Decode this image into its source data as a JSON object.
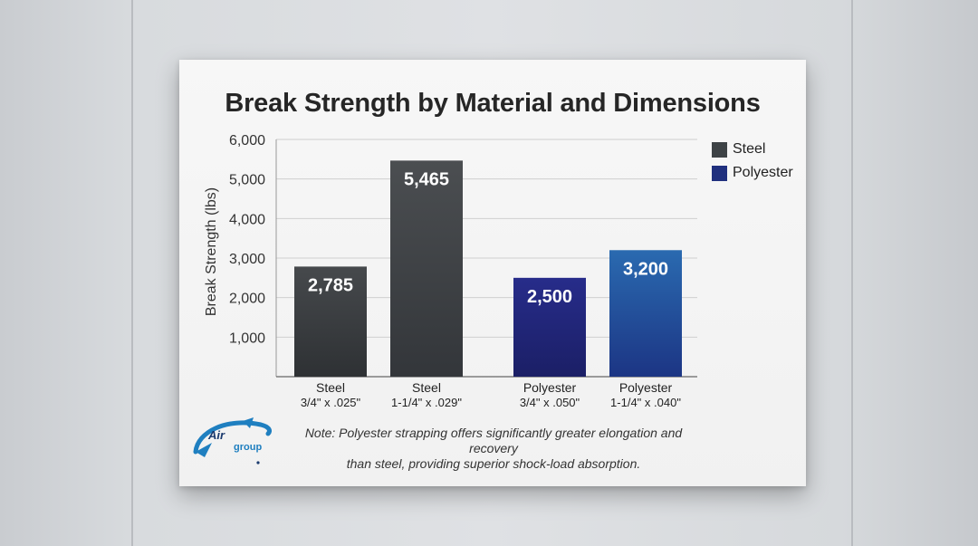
{
  "chart_data": {
    "type": "bar",
    "title": "Break Strength by Material and Dimensions",
    "ylabel": "Break Strength (lbs)",
    "xlabel": "",
    "ylim": [
      0,
      6000
    ],
    "yticks": [
      1000,
      2000,
      3000,
      4000,
      5000,
      6000
    ],
    "ytick_labels": [
      "1,000",
      "2,000",
      "3,000",
      "4,000",
      "5,000",
      "6,000"
    ],
    "grid": true,
    "legend_position": "top-right",
    "categories": [
      {
        "line1": "Steel",
        "line2": "3/4\" x .025\""
      },
      {
        "line1": "Steel",
        "line2": "1-1/4\" x .029\""
      },
      {
        "line1": "Polyester",
        "line2": "3/4\" x .050\""
      },
      {
        "line1": "Polyester",
        "line2": "1-1/4\" x .040\""
      }
    ],
    "values": [
      2785,
      5465,
      2500,
      3200
    ],
    "value_labels": [
      "2,785",
      "5,465",
      "2,500",
      "3,200"
    ],
    "series_of_bar": [
      "Steel",
      "Steel",
      "Polyester",
      "Polyester"
    ],
    "legend": [
      {
        "name": "Steel",
        "color": "#3e4346"
      },
      {
        "name": "Polyester",
        "color": "#20307e"
      }
    ],
    "bar_colors": [
      {
        "top": "#46494c",
        "bottom": "#2e3134"
      },
      {
        "top": "#4b4e51",
        "bottom": "#33363a"
      },
      {
        "top": "#272c8a",
        "bottom": "#1b1f66"
      },
      {
        "top": "#2a6ab0",
        "bottom": "#1c3584"
      }
    ]
  },
  "note": {
    "line1": "Note: Polyester strapping offers significantly greater elongation and recovery",
    "line2": "than steel, providing superior shock-load absorption."
  },
  "logo": {
    "text_top": "Air",
    "text_bottom": "group",
    "color": "#1f7fc0"
  }
}
